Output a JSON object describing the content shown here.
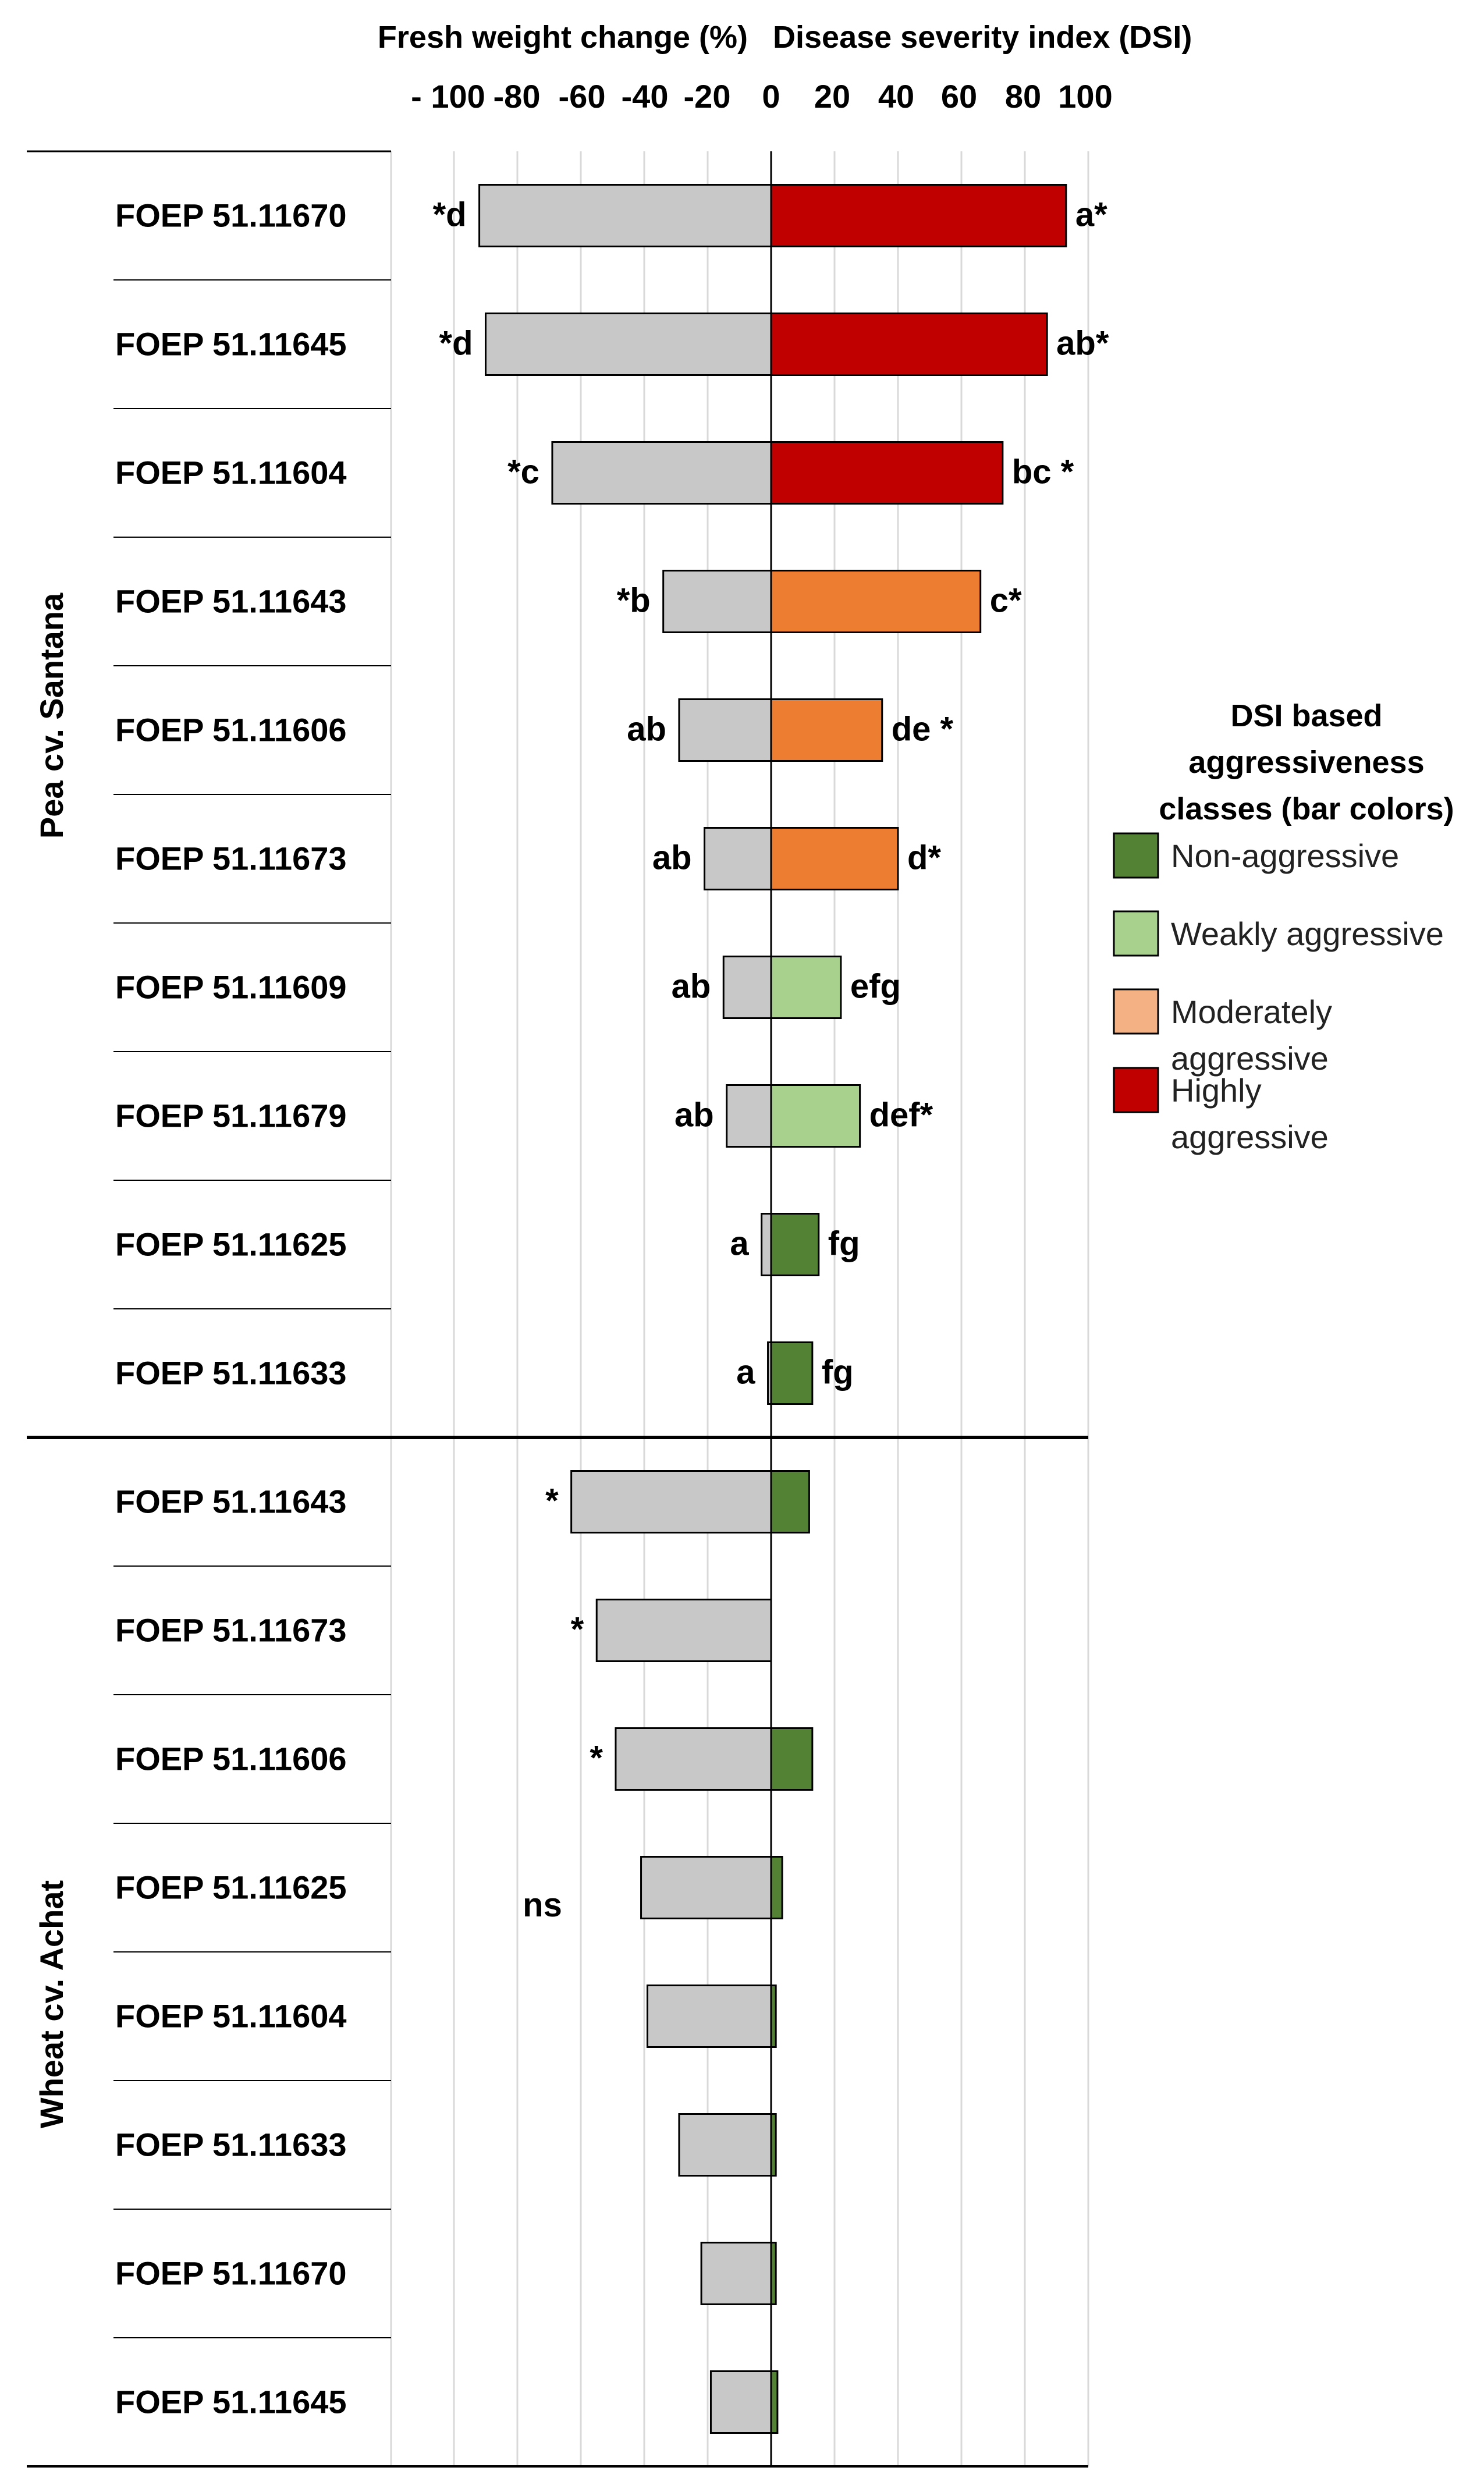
{
  "chart_data": {
    "type": "bar",
    "subtype": "diverging-horizontal",
    "axis_titles": {
      "left": "Fresh weight change (%)",
      "right": "Disease severity index (DSI)"
    },
    "tick_labels": [
      "- 100",
      "-80",
      "-60",
      "-40",
      "-20",
      "0",
      "20",
      "40",
      "60",
      "80",
      "100"
    ],
    "tick_values": [
      -100,
      -80,
      -60,
      -40,
      -20,
      0,
      20,
      40,
      60,
      80,
      100
    ],
    "xlim": [
      -120,
      100
    ],
    "grid": true,
    "legend": {
      "title_lines": [
        "DSI based",
        "aggressiveness",
        "classes (bar colors)"
      ],
      "placement": "right",
      "items": [
        {
          "label_lines": [
            "Non-aggressive"
          ],
          "color": "#548235"
        },
        {
          "label_lines": [
            "Weakly aggressive"
          ],
          "color": "#a9d18e"
        },
        {
          "label_lines": [
            "Moderately",
            "aggressive"
          ],
          "color": "#f4b183"
        },
        {
          "label_lines": [
            "Highly",
            "aggressive"
          ],
          "color": "#c00000"
        }
      ]
    },
    "groups": [
      {
        "name": "Pea cv. Santana",
        "rows": [
          {
            "label": "FOEP 51.11670",
            "fresh_weight_change": -92,
            "fw_label": "*d",
            "dsi": 93,
            "dsi_label": "a*",
            "dsi_color": "#c00000"
          },
          {
            "label": "FOEP 51.11645",
            "fresh_weight_change": -90,
            "fw_label": "*d",
            "dsi": 87,
            "dsi_label": "ab*",
            "dsi_color": "#c00000"
          },
          {
            "label": "FOEP 51.11604",
            "fresh_weight_change": -69,
            "fw_label": "*c",
            "dsi": 73,
            "dsi_label": "bc *",
            "dsi_color": "#c00000"
          },
          {
            "label": "FOEP 51.11643",
            "fresh_weight_change": -34,
            "fw_label": "*b",
            "dsi": 66,
            "dsi_label": "c*",
            "dsi_color": "#ed7d31"
          },
          {
            "label": "FOEP 51.11606",
            "fresh_weight_change": -29,
            "fw_label": "ab",
            "dsi": 35,
            "dsi_label": "de *",
            "dsi_color": "#ed7d31"
          },
          {
            "label": "FOEP 51.11673",
            "fresh_weight_change": -21,
            "fw_label": "ab",
            "dsi": 40,
            "dsi_label": "d*",
            "dsi_color": "#ed7d31"
          },
          {
            "label": "FOEP 51.11609",
            "fresh_weight_change": -15,
            "fw_label": "ab",
            "dsi": 22,
            "dsi_label": "efg",
            "dsi_color": "#a9d18e"
          },
          {
            "label": "FOEP 51.11679",
            "fresh_weight_change": -14,
            "fw_label": "ab",
            "dsi": 28,
            "dsi_label": "def*",
            "dsi_color": "#a9d18e"
          },
          {
            "label": "FOEP 51.11625",
            "fresh_weight_change": -3,
            "fw_label": "a",
            "dsi": 15,
            "dsi_label": "fg",
            "dsi_color": "#548235"
          },
          {
            "label": "FOEP 51.11633",
            "fresh_weight_change": -1,
            "fw_label": "a",
            "dsi": 13,
            "dsi_label": "fg",
            "dsi_color": "#548235"
          }
        ]
      },
      {
        "name": "Wheat cv. Achat",
        "rows": [
          {
            "label": "FOEP 51.11643",
            "fresh_weight_change": -63,
            "fw_label": "*",
            "dsi": 12,
            "dsi_label": "",
            "dsi_color": "#548235"
          },
          {
            "label": "FOEP 51.11673",
            "fresh_weight_change": -55,
            "fw_label": "*",
            "dsi": 0,
            "dsi_label": "",
            "dsi_color": "#548235"
          },
          {
            "label": "FOEP 51.11606",
            "fresh_weight_change": -49,
            "fw_label": "*",
            "dsi": 13,
            "dsi_label": "",
            "dsi_color": "#548235"
          },
          {
            "label": "FOEP 51.11625",
            "fresh_weight_change": -41,
            "fw_label": "",
            "dsi": 3.5,
            "dsi_label": "",
            "dsi_color": "#548235"
          },
          {
            "label": "FOEP 51.11604",
            "fresh_weight_change": -39,
            "fw_label": "",
            "dsi": 1.5,
            "dsi_label": "",
            "dsi_color": "#548235"
          },
          {
            "label": "FOEP 51.11633",
            "fresh_weight_change": -29,
            "fw_label": "",
            "dsi": 1.5,
            "dsi_label": "",
            "dsi_color": "#548235"
          },
          {
            "label": "FOEP 51.11670",
            "fresh_weight_change": -22,
            "fw_label": "",
            "dsi": 1.5,
            "dsi_label": "",
            "dsi_color": "#548235"
          },
          {
            "label": "FOEP 51.11645",
            "fresh_weight_change": -19,
            "fw_label": "",
            "dsi": 2,
            "dsi_label": "",
            "dsi_color": "#548235"
          }
        ],
        "group_annotation": "ns"
      }
    ]
  }
}
